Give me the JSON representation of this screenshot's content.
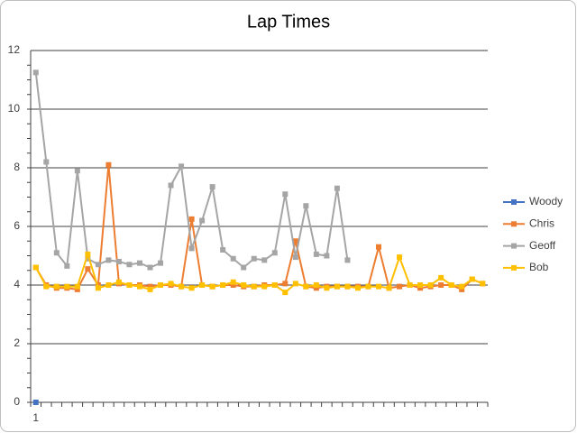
{
  "chart_data": {
    "type": "line",
    "title": "Lap Times",
    "categories": [
      "1",
      null,
      null,
      null,
      null,
      null,
      null,
      null,
      null,
      null,
      null,
      null,
      null,
      null,
      null,
      null,
      null,
      null,
      null,
      null,
      null,
      null,
      null,
      null,
      null,
      null,
      null,
      null,
      null,
      null,
      null,
      null,
      null,
      null,
      null,
      null,
      null,
      null,
      null,
      null,
      null,
      null,
      null,
      null
    ],
    "series": [
      {
        "name": "Woody",
        "color": "#4472c4",
        "values": [
          0,
          null,
          null,
          null,
          null,
          null,
          null,
          null,
          null,
          null,
          null,
          null,
          null,
          null,
          null,
          null,
          null,
          null,
          null,
          null,
          null,
          null,
          null,
          null,
          null,
          null,
          null,
          null,
          null,
          null,
          null,
          null,
          null,
          null,
          null,
          null,
          null,
          null,
          null,
          null,
          null,
          null,
          null,
          null
        ]
      },
      {
        "name": "Chris",
        "color": "#ed7d31",
        "values": [
          4.6,
          4.0,
          3.9,
          3.9,
          3.85,
          4.55,
          4.0,
          8.1,
          4.05,
          4.0,
          4.0,
          3.95,
          4.0,
          4.0,
          3.95,
          6.25,
          4.0,
          3.95,
          4.0,
          4.0,
          3.95,
          3.95,
          4.0,
          4.0,
          4.05,
          5.5,
          3.95,
          3.9,
          3.95,
          3.95,
          3.95,
          3.95,
          3.95,
          5.3,
          3.9,
          3.95,
          4.0,
          3.9,
          3.95,
          4.0,
          4.0,
          3.85,
          4.2,
          4.05
        ]
      },
      {
        "name": "Geoff",
        "color": "#a5a5a5",
        "values": [
          11.25,
          8.2,
          5.1,
          4.65,
          7.9,
          4.9,
          4.7,
          4.85,
          4.8,
          4.7,
          4.75,
          4.6,
          4.75,
          7.4,
          8.05,
          5.25,
          6.2,
          7.35,
          5.2,
          4.9,
          4.6,
          4.9,
          4.85,
          5.1,
          7.1,
          4.95,
          6.7,
          5.05,
          5.0,
          7.3,
          4.85,
          null,
          null,
          null,
          null,
          null,
          null,
          null,
          null,
          null,
          null,
          null,
          null,
          null
        ]
      },
      {
        "name": "Bob",
        "color": "#ffc000",
        "values": [
          4.6,
          3.95,
          3.95,
          3.95,
          3.95,
          5.05,
          3.9,
          4.0,
          4.1,
          4.0,
          3.95,
          3.85,
          4.0,
          4.05,
          3.95,
          3.9,
          4.0,
          3.95,
          4.0,
          4.1,
          4.0,
          3.95,
          3.95,
          4.0,
          3.75,
          4.05,
          3.95,
          4.0,
          3.9,
          3.95,
          3.95,
          3.9,
          3.95,
          3.95,
          3.9,
          4.95,
          4.0,
          4.0,
          4.0,
          4.25,
          4.0,
          3.95,
          4.2,
          4.05
        ]
      }
    ],
    "ylim": [
      0,
      12
    ],
    "yticks": [
      0,
      2,
      4,
      6,
      8,
      10,
      12
    ],
    "grid": true,
    "legend": "right"
  }
}
